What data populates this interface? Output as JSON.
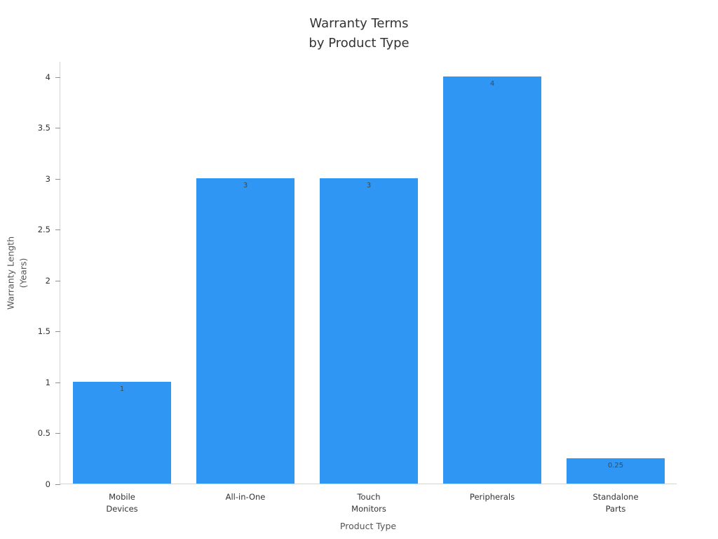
{
  "chart_data": {
    "type": "bar",
    "title": "Warranty Terms\nby Product Type",
    "xlabel": "Product Type",
    "ylabel": "Warranty Length\n(Years)",
    "categories": [
      "Mobile\nDevices",
      "All-in-One",
      "Touch\nMonitors",
      "Peripherals",
      "Standalone\nParts"
    ],
    "values": [
      1,
      3,
      3,
      4,
      0.25
    ],
    "bar_labels": [
      "1",
      "3",
      "3",
      "4",
      "0.25"
    ],
    "yticks": [
      0,
      0.5,
      1,
      1.5,
      2,
      2.5,
      3,
      3.5,
      4
    ],
    "ytick_labels": [
      "0",
      "0.5",
      "1",
      "1.5",
      "2",
      "2.5",
      "3",
      "3.5",
      "4"
    ],
    "ylim": [
      0,
      4.15
    ],
    "grid": false,
    "legend": "none",
    "bar_color": "#2f96f3"
  },
  "colors": {
    "bar": "#2f96f3",
    "title_text": "#333333",
    "tick_text": "#333333",
    "axis_title_text": "#555555",
    "spine": "#cfd4da",
    "tick_mark": "#8a9097",
    "bar_value_text": "#374b59",
    "background": "#ffffff"
  }
}
